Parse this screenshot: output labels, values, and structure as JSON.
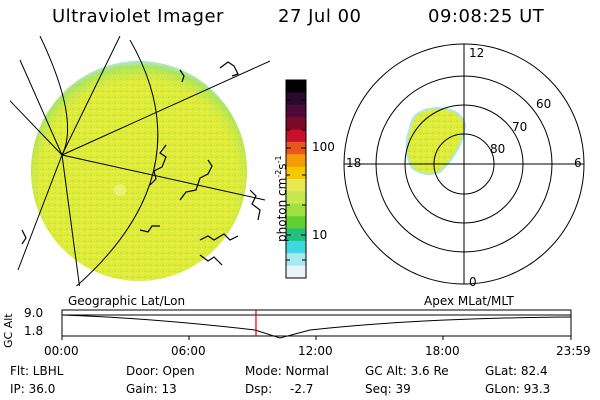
{
  "header": {
    "instrument": "Ultraviolet Imager",
    "date": "27 Jul 00",
    "time": "09:08:25 UT"
  },
  "colorbar": {
    "unit_base": "photon cm",
    "unit_exp1": "-2",
    "unit_mid": "s",
    "unit_exp2": "-1",
    "ticks": [
      "100",
      "10"
    ],
    "colors": [
      "#000000",
      "#2a0830",
      "#4b0a3a",
      "#7a0a2a",
      "#c8102a",
      "#e8581a",
      "#f59a0a",
      "#f5c800",
      "#e8e850",
      "#c8e850",
      "#a0e040",
      "#60d030",
      "#20c080",
      "#40d8e0",
      "#a8e8f0",
      "#e8f4f8"
    ]
  },
  "polar": {
    "mlt_labels": [
      "12",
      "18",
      "6",
      "0"
    ],
    "mlat_labels": [
      "60",
      "70",
      "80"
    ]
  },
  "timeline": {
    "left_label": "Geographic Lat/Lon",
    "right_label": "Apex MLat/MLT",
    "ylabel": "GC Alt",
    "yticks": [
      "9.0",
      "1.8"
    ],
    "xticks": [
      "00:00",
      "06:00",
      "12:00",
      "18:00",
      "23:59"
    ],
    "current_time": "09:08:25"
  },
  "info": {
    "filter": "Flt: LBHL",
    "door": "Door: Open",
    "mode": "Mode: Normal",
    "gc_alt": "GC Alt: 3.6 Re",
    "glat": "GLat: 82.4",
    "ip": "IP: 36.0",
    "gain": "Gain: 13",
    "dsp_label": "Dsp:",
    "dsp_value": "-2.7",
    "seq": "Seq: 39",
    "glon": "GLon: 93.3"
  }
}
